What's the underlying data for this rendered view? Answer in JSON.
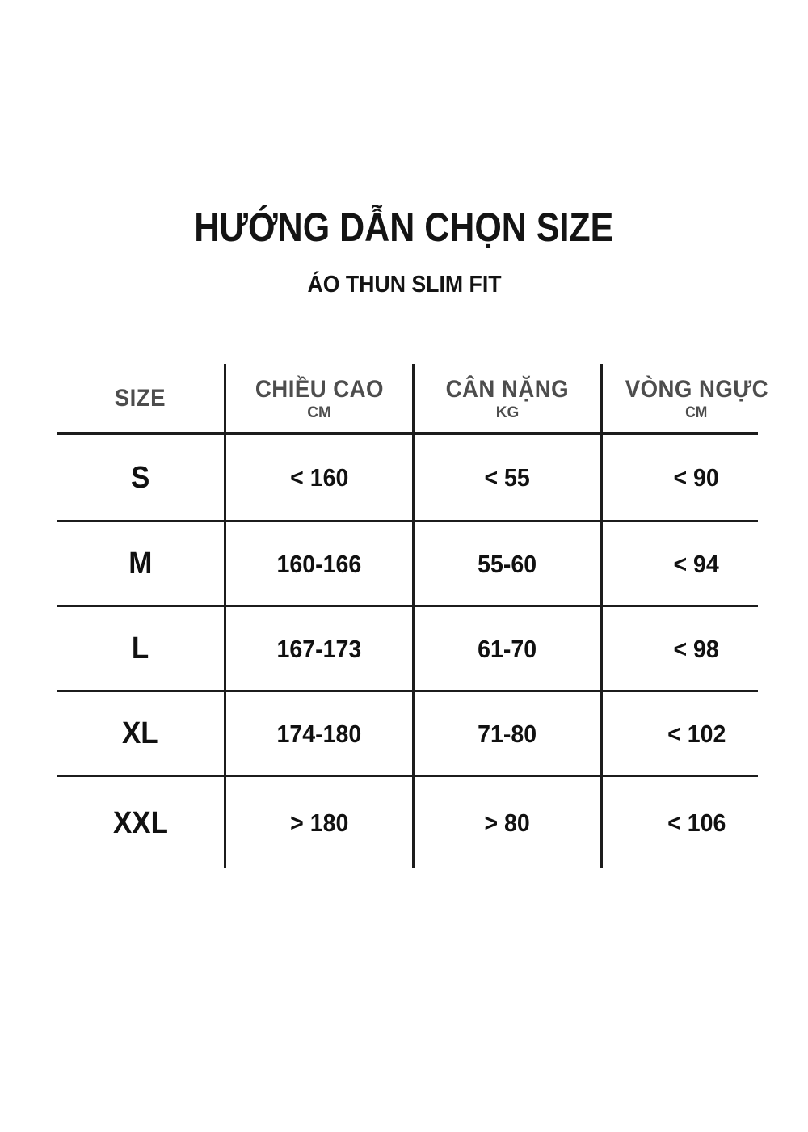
{
  "page": {
    "title": "HƯỚNG DẪN CHỌN SIZE",
    "subtitle": "ÁO THUN SLIM FIT"
  },
  "table": {
    "headers": [
      {
        "label": "SIZE",
        "unit": ""
      },
      {
        "label": "CHIỀU CAO",
        "unit": "CM"
      },
      {
        "label": "CÂN NẶNG",
        "unit": "KG"
      },
      {
        "label": "VÒNG NGỰC",
        "unit": "CM"
      }
    ],
    "rows": [
      {
        "size": "S",
        "height_cm": "< 160",
        "weight_kg": "< 55",
        "chest_cm": "< 90"
      },
      {
        "size": "M",
        "height_cm": "160-166",
        "weight_kg": "55-60",
        "chest_cm": "< 94"
      },
      {
        "size": "L",
        "height_cm": "167-173",
        "weight_kg": "61-70",
        "chest_cm": "< 98"
      },
      {
        "size": "XL",
        "height_cm": "174-180",
        "weight_kg": "71-80",
        "chest_cm": "< 102"
      },
      {
        "size": "XXL",
        "height_cm": "> 180",
        "weight_kg": "> 80",
        "chest_cm": "< 106"
      }
    ]
  },
  "chart_data": {
    "type": "table",
    "title": "HƯỚNG DẪN CHỌN SIZE",
    "subtitle": "ÁO THUN SLIM FIT",
    "columns": [
      "SIZE",
      "CHIỀU CAO (CM)",
      "CÂN NẶNG (KG)",
      "VÒNG NGỰC (CM)"
    ],
    "rows": [
      [
        "S",
        "< 160",
        "< 55",
        "< 90"
      ],
      [
        "M",
        "160-166",
        "55-60",
        "< 94"
      ],
      [
        "L",
        "167-173",
        "61-70",
        "< 98"
      ],
      [
        "XL",
        "174-180",
        "71-80",
        "< 102"
      ],
      [
        "XXL",
        "> 180",
        "> 80",
        "< 106"
      ]
    ]
  },
  "colors": {
    "background": "#ffffff",
    "header_text": "#4d4d4d",
    "body_text": "#111111",
    "line": "#1c1c1c"
  }
}
